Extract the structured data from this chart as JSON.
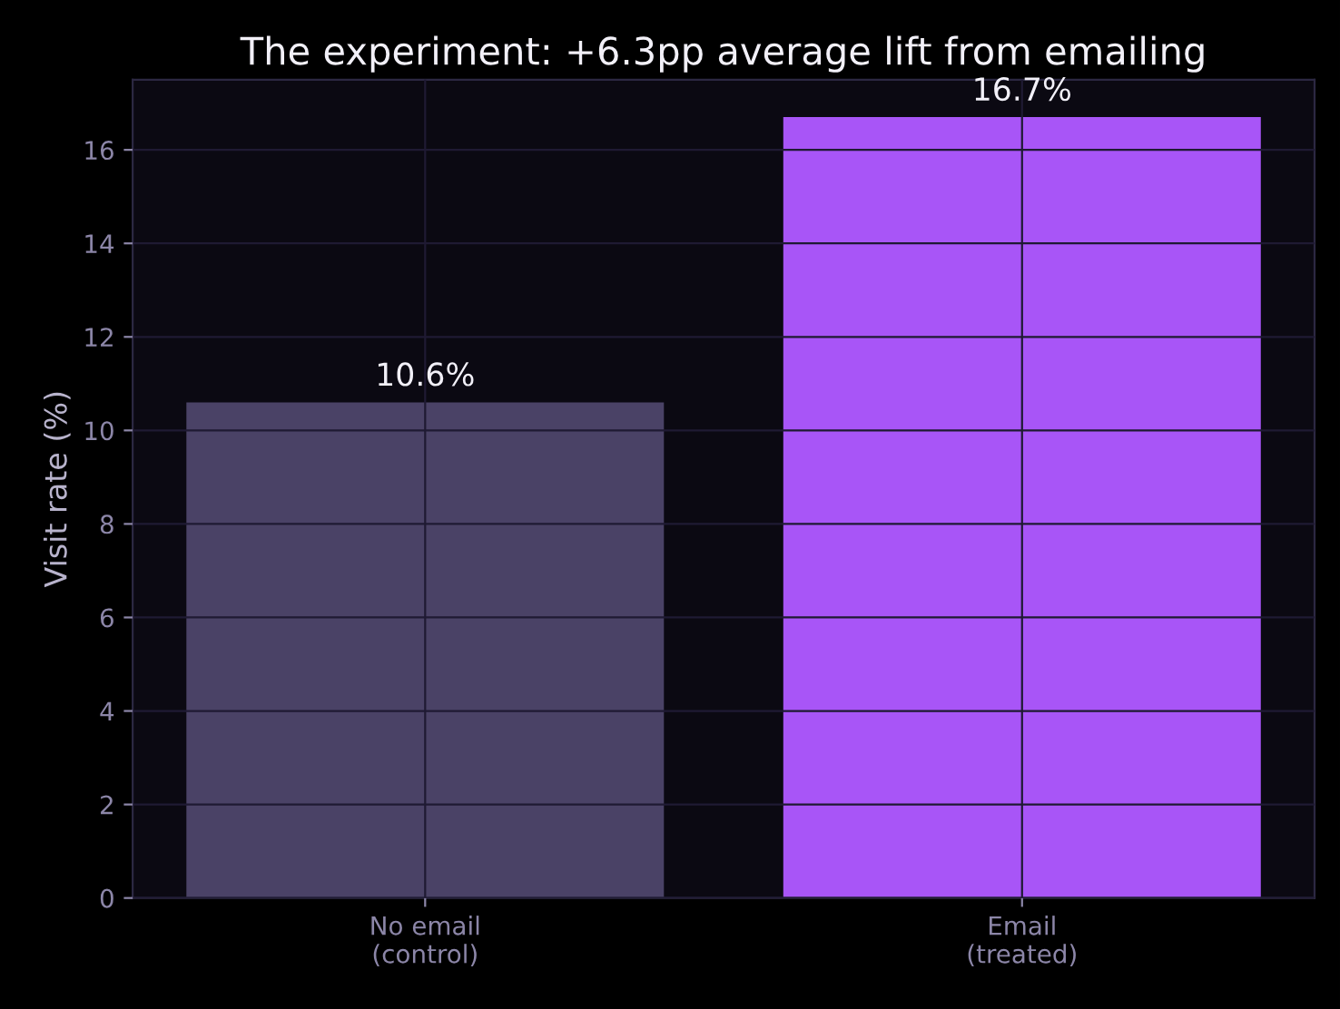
{
  "chart_data": {
    "type": "bar",
    "title": "The experiment: +6.3pp average lift from emailing",
    "ylabel": "Visit rate (%)",
    "categories": [
      "No email\n(control)",
      "Email\n(treated)"
    ],
    "values": [
      10.6,
      16.7
    ],
    "colors": [
      "#4a4266",
      "#a855f7"
    ],
    "value_labels": [
      "10.6%",
      "16.7%"
    ],
    "ylim": [
      0,
      17.5
    ],
    "yticks": [
      0,
      2,
      4,
      6,
      8,
      10,
      12,
      14,
      16
    ],
    "grid": true
  }
}
